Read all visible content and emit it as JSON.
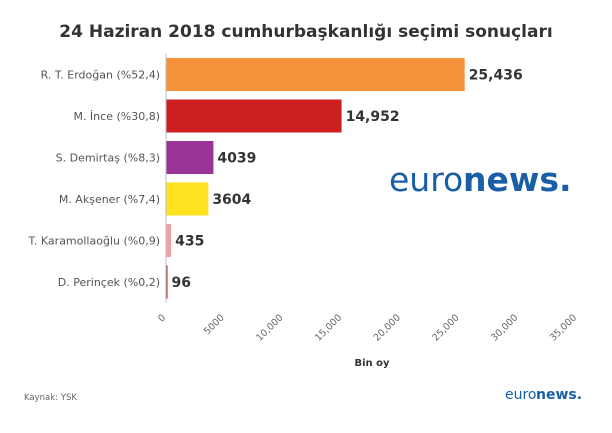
{
  "chart_data": {
    "type": "bar",
    "orientation": "horizontal",
    "title": "24 Haziran 2018 cumhurbaşkanlığı seçimi sonuçları",
    "xlabel": "Bin oy",
    "ylabel": "",
    "xlim": [
      0,
      35000
    ],
    "xticks": [
      "0",
      "5000",
      "10,000",
      "15,000",
      "20,000",
      "25,000",
      "30,000",
      "35,000"
    ],
    "grid": false,
    "categories": [
      "R. T. Erdoğan (%52,4)",
      "M. İnce (%30,8)",
      "S. Demirtaş (%8,3)",
      "M. Akşener (%7,4)",
      "T. Karamollaoğlu (%0,9)",
      "D. Perinçek (%0,2)"
    ],
    "values": [
      25436,
      14952,
      4039,
      3604,
      435,
      96
    ],
    "value_labels": [
      "25,436",
      "14,952",
      "4039",
      "3604",
      "435",
      "96"
    ],
    "colors": [
      "#f6923a",
      "#cc1f1f",
      "#9b3497",
      "#ffe21f",
      "#f0a0a0",
      "#a52a2a"
    ]
  },
  "footer": {
    "source": "Kaynak: YSK",
    "logo_left": "euro",
    "logo_right": "news."
  }
}
